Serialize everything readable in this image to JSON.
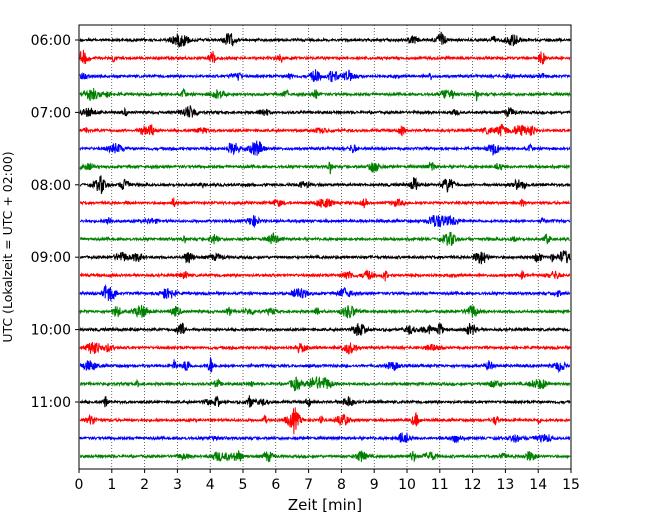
{
  "chart_data": {
    "type": "line",
    "xlabel": "Zeit  [min]",
    "ylabel": "UTC (Lokalzeit = UTC + 02:00)",
    "xlim": [
      0,
      15
    ],
    "x_ticks": [
      0,
      1,
      2,
      3,
      4,
      5,
      6,
      7,
      8,
      9,
      10,
      11,
      12,
      13,
      14,
      15
    ],
    "y_ticks": [
      {
        "label": "06:00",
        "row": 0
      },
      {
        "label": "07:00",
        "row": 4
      },
      {
        "label": "08:00",
        "row": 8
      },
      {
        "label": "09:00",
        "row": 12
      },
      {
        "label": "10:00",
        "row": 16
      },
      {
        "label": "11:00",
        "row": 20
      }
    ],
    "row_count": 24,
    "row_minutes": 15,
    "vertical_grid": true,
    "grid_style": "dotted",
    "series_colors": [
      "#000000",
      "#ff0000",
      "#0000ff",
      "#008000"
    ]
  }
}
